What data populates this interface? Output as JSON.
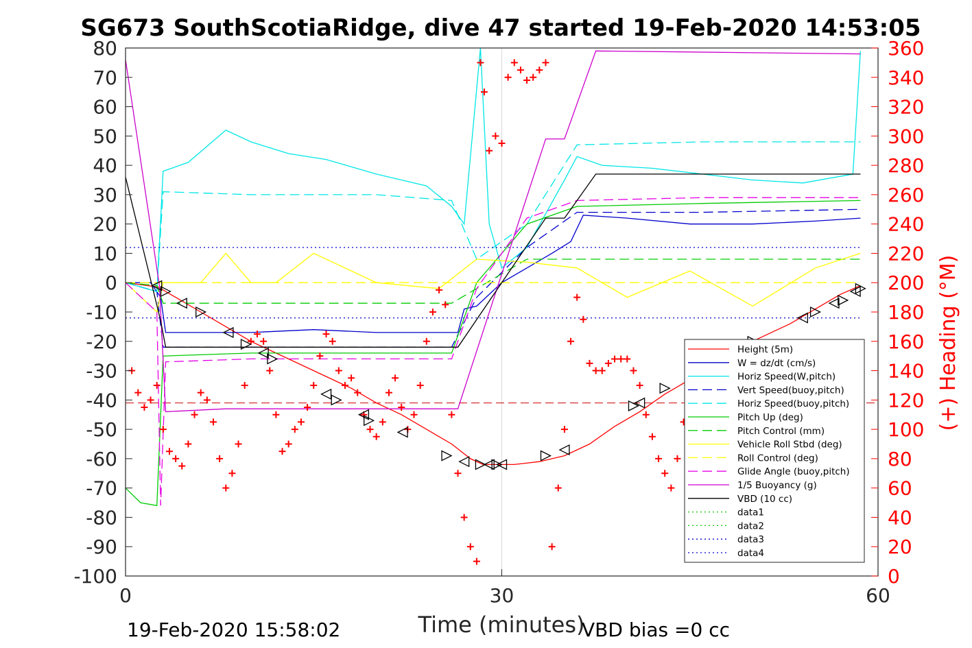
{
  "chart_data": {
    "type": "line",
    "title": "SG673 SouthScotiaRidge, dive 47 started 19-Feb-2020 14:53:05",
    "xlabel": "Time (minutes)",
    "ylabel": "",
    "ylabel_right": "(+) Heading (°M)",
    "xlim": [
      0,
      60
    ],
    "ylim": [
      -100,
      80
    ],
    "ylim_right": [
      0,
      360
    ],
    "x_ticks": [
      "0",
      "30",
      "60"
    ],
    "y_ticks": [
      "80",
      "70",
      "60",
      "50",
      "40",
      "30",
      "20",
      "10",
      "0",
      "-10",
      "-20",
      "-30",
      "-40",
      "-50",
      "-60",
      "-70",
      "-80",
      "-90",
      "-100"
    ],
    "y_ticks_right": [
      "360",
      "340",
      "320",
      "300",
      "280",
      "260",
      "240",
      "220",
      "200",
      "180",
      "160",
      "140",
      "120",
      "100",
      "80",
      "60",
      "40",
      "20",
      "0"
    ],
    "grid": "x-only at 30",
    "legend_position": "bottom-right",
    "footer_left": "19-Feb-2020 15:58:02",
    "footer_right": "VBD bias =0 cc",
    "series": [
      {
        "name": "Height (5m)",
        "color": "#ff0000",
        "style": "solid",
        "x": [
          0,
          2.6,
          4,
          6,
          8,
          10,
          12,
          14,
          16,
          18,
          20,
          22,
          24,
          26,
          27.5,
          28.5,
          29.5,
          31,
          33,
          35,
          37,
          39,
          41,
          43,
          45,
          47,
          49,
          51,
          53,
          55,
          57,
          58.6
        ],
        "y": [
          0,
          -1.5,
          -5,
          -10,
          -15,
          -20,
          -24,
          -28,
          -32,
          -36,
          -41,
          -45,
          -50,
          -55,
          -60,
          -62,
          -62,
          -62,
          -61,
          -59,
          -55,
          -49,
          -44,
          -38,
          -33,
          -27,
          -22,
          -18,
          -14,
          -9,
          -4,
          -1
        ]
      },
      {
        "name": "W = dz/dt (cm/s)",
        "color": "#0000cc",
        "style": "solid",
        "x": [
          0,
          2,
          2.8,
          3.2,
          5,
          10,
          15,
          20,
          25,
          26.5,
          27,
          28,
          30,
          32,
          34,
          35.5,
          36.5,
          40,
          45,
          50,
          55,
          58.6
        ],
        "y": [
          0,
          0,
          -5,
          -17,
          -17,
          -17,
          -16,
          -17,
          -17,
          -17,
          -9,
          -8,
          0,
          5,
          10,
          14,
          23,
          22,
          20,
          20,
          21,
          22
        ]
      },
      {
        "name": "Horiz Speed(W,pitch)",
        "color": "#00e6e6",
        "style": "solid",
        "x": [
          0,
          2.5,
          3,
          5,
          8,
          10,
          13,
          16,
          20,
          24,
          26,
          27,
          28.3,
          29,
          30,
          32,
          35,
          36,
          38,
          42,
          46,
          50,
          54,
          58,
          58.6
        ],
        "y": [
          0,
          -3,
          38,
          41,
          52,
          48,
          44,
          42,
          37,
          33,
          26,
          20,
          80,
          20,
          5,
          12,
          35,
          43,
          40,
          39,
          37,
          35,
          34,
          37,
          79
        ]
      },
      {
        "name": "Vert Speed(buoy,pitch)",
        "color": "#0000cc",
        "style": "dashed",
        "x": [
          0,
          2.5,
          3,
          10,
          20,
          26,
          28,
          32,
          36,
          46,
          58.6
        ],
        "y": [
          0,
          -3,
          -22,
          -22,
          -22,
          -22,
          -5,
          12,
          24,
          24,
          25
        ]
      },
      {
        "name": "Horiz Speed(buoy,pitch)",
        "color": "#00e6e6",
        "style": "dashed",
        "x": [
          0,
          2.5,
          3,
          10,
          20,
          26,
          28,
          32,
          36,
          46,
          58.6
        ],
        "y": [
          0,
          -3,
          31,
          30,
          30,
          28,
          8,
          20,
          47,
          48,
          48
        ]
      },
      {
        "name": "Pitch Up (deg)",
        "color": "#00cc00",
        "style": "solid",
        "x": [
          0,
          1.2,
          2.5,
          3,
          10,
          20,
          26,
          28,
          32,
          36,
          46,
          58.6
        ],
        "y": [
          -70,
          -75,
          -76,
          -25,
          -24,
          -24,
          -24,
          0,
          20,
          26,
          27,
          28
        ]
      },
      {
        "name": "Pitch Control (mm)",
        "color": "#00cc00",
        "style": "dashed",
        "x": [
          0,
          2.5,
          3,
          26,
          28,
          32,
          36,
          58.6
        ],
        "y": [
          0,
          -1,
          -7,
          -7,
          -2,
          8,
          8,
          8
        ]
      },
      {
        "name": "Vehicle Roll Stbd (deg)",
        "color": "#ffff00",
        "style": "solid",
        "x": [
          0,
          2.5,
          3,
          6,
          8,
          10,
          12,
          15,
          20,
          25,
          28,
          32,
          36,
          40,
          45,
          50,
          55,
          58.6
        ],
        "y": [
          0,
          -10,
          0,
          0,
          10,
          0,
          0,
          10,
          0,
          -2,
          8,
          7,
          5,
          -5,
          4,
          -8,
          5,
          10
        ]
      },
      {
        "name": "Roll Control (deg)",
        "color": "#ffff00",
        "style": "dashed",
        "x": [
          0,
          3,
          10,
          20,
          30,
          40,
          50,
          58.6
        ],
        "y": [
          0,
          0,
          0,
          0,
          0,
          0,
          0,
          0
        ]
      },
      {
        "name": "Glide Angle (buoy,pitch)",
        "color": "#e600e6",
        "style": "dashed",
        "x": [
          0,
          2.5,
          2.8,
          3.2,
          10,
          20,
          26,
          28,
          32,
          36,
          46,
          58.6
        ],
        "y": [
          0,
          -10,
          -76,
          -27,
          -26,
          -26,
          -26,
          -2,
          22,
          28,
          29,
          29
        ]
      },
      {
        "name": "1/5 Buoyancy (g)",
        "color": "#cc00cc",
        "style": "solid",
        "x": [
          0,
          2.7,
          3.2,
          8,
          26.5,
          33.5,
          35,
          37.5,
          58.6
        ],
        "y": [
          76,
          -1,
          -44,
          -43,
          -43,
          49,
          49,
          79,
          78
        ]
      },
      {
        "name": "VBD (10 cc)",
        "color": "#000000",
        "style": "solid",
        "x": [
          0,
          2.8,
          3.2,
          10,
          20,
          26.5,
          33.5,
          35,
          37.5,
          58.6
        ],
        "y": [
          36,
          -13,
          -22,
          -22,
          -22,
          -22,
          22,
          22,
          37,
          37
        ]
      },
      {
        "name": "data1",
        "color": "#00cc00",
        "style": "dotted",
        "x": [],
        "y": []
      },
      {
        "name": "data2",
        "color": "#00cc00",
        "style": "dotted",
        "x": [],
        "y": []
      },
      {
        "name": "data3",
        "color": "#0000cc",
        "style": "dotted",
        "x": [
          0,
          58.6
        ],
        "y": [
          12,
          12
        ]
      },
      {
        "name": "data4",
        "color": "#0000cc",
        "style": "dotted",
        "x": [
          0,
          58.6
        ],
        "y": [
          -12,
          -12
        ]
      }
    ],
    "reference_lines": [
      {
        "color": "#cc0000",
        "style": "dashed",
        "y": -41
      }
    ],
    "heading_points": {
      "color": "#ff0000",
      "marker": "+",
      "x": [
        0.5,
        1,
        1.5,
        2,
        2.5,
        3,
        3.5,
        4,
        4.5,
        5,
        5.5,
        6,
        6.5,
        7,
        7.5,
        8,
        8.5,
        9,
        9.5,
        10,
        10.5,
        11,
        11.5,
        12,
        12.5,
        13,
        13.5,
        14,
        14.5,
        15,
        15.5,
        16,
        16.5,
        17,
        17.5,
        18,
        18.5,
        19,
        19.5,
        20,
        20.5,
        21,
        21.5,
        22,
        22.5,
        23,
        23.5,
        24,
        24.5,
        25,
        25.5,
        26,
        26.5,
        27,
        27.5,
        28,
        28.3,
        28.6,
        29,
        29.5,
        30,
        30.5,
        31,
        31.5,
        32,
        32.5,
        33,
        33.5,
        34,
        34.5,
        35,
        35.5,
        36,
        36.5,
        37,
        37.5,
        38,
        38.5,
        39,
        39.5,
        40,
        40.5,
        41,
        41.5,
        42,
        42.5,
        43,
        43.5,
        44,
        44.5,
        45
      ],
      "y": [
        140,
        125,
        115,
        120,
        130,
        100,
        85,
        80,
        75,
        90,
        110,
        125,
        120,
        105,
        80,
        60,
        70,
        90,
        130,
        160,
        165,
        160,
        140,
        110,
        85,
        90,
        100,
        105,
        115,
        130,
        150,
        165,
        160,
        140,
        130,
        135,
        125,
        110,
        100,
        95,
        105,
        125,
        135,
        115,
        100,
        110,
        130,
        160,
        180,
        195,
        185,
        110,
        70,
        40,
        20,
        10,
        350,
        330,
        290,
        300,
        295,
        340,
        350,
        345,
        338,
        340,
        345,
        350,
        20,
        60,
        100,
        160,
        190,
        175,
        145,
        140,
        140,
        145,
        148,
        148,
        148,
        140,
        130,
        110,
        95,
        80,
        70,
        60,
        80,
        105,
        120
      ]
    },
    "depth_markers": {
      "description_markers": "triangles along height trace",
      "x": [
        2.5,
        3.2,
        4.5,
        6,
        8.2,
        9.6,
        11,
        11.7,
        16,
        16.8,
        19,
        19.4,
        22.1,
        25.6,
        27,
        28.3,
        29,
        29.6,
        30,
        33.5,
        35,
        40.5,
        41,
        43,
        45,
        50,
        54,
        55,
        56.5,
        57.2,
        58.2,
        58.6
      ],
      "y": [
        -1,
        -3,
        -7,
        -10,
        -17,
        -21,
        -24,
        -26,
        -38,
        -40,
        -45,
        -47,
        -51,
        -59,
        -61,
        -62,
        -62,
        -62,
        -62,
        -59,
        -57,
        -42,
        -41,
        -36,
        -33,
        -20,
        -12,
        -10,
        -7,
        -6,
        -3,
        -2
      ]
    }
  }
}
